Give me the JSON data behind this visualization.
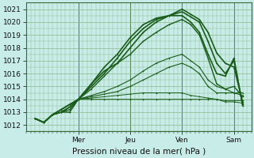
{
  "background_color": "#c8ece8",
  "grid_major_color": "#9abf9a",
  "grid_minor_color": "#a8d4a8",
  "line_color": "#1a5c1a",
  "ylabel_text": "Pression niveau de la mer( hPa )",
  "day_labels": [
    "Mer",
    "Jeu",
    "Ven",
    "Sam"
  ],
  "ylim": [
    1011.5,
    1021.5
  ],
  "yticks": [
    1012,
    1013,
    1014,
    1015,
    1016,
    1017,
    1018,
    1019,
    1020,
    1021
  ],
  "xlim": [
    -4,
    100
  ],
  "day_positions": [
    20,
    44,
    68,
    92
  ],
  "series": [
    [
      0,
      1012.5,
      4,
      1012.2,
      8,
      1012.8,
      12,
      1013.2,
      16,
      1013.6,
      20,
      1014.0,
      26,
      1015.2,
      32,
      1016.2,
      38,
      1016.8,
      44,
      1018.0,
      50,
      1019.2,
      56,
      1020.0,
      62,
      1020.5,
      68,
      1021.0,
      72,
      1020.6,
      76,
      1020.2,
      80,
      1019.2,
      84,
      1017.6,
      88,
      1016.8,
      92,
      1016.5,
      96,
      1013.8
    ],
    [
      0,
      1012.5,
      4,
      1012.2,
      8,
      1012.8,
      12,
      1013.2,
      16,
      1013.6,
      20,
      1014.0,
      26,
      1015.0,
      32,
      1016.0,
      38,
      1017.2,
      44,
      1018.5,
      50,
      1019.5,
      56,
      1020.2,
      62,
      1020.5,
      68,
      1020.8,
      72,
      1020.4,
      76,
      1020.0,
      80,
      1018.5,
      84,
      1016.8,
      88,
      1016.0,
      92,
      1017.0,
      96,
      1013.6
    ],
    [
      0,
      1012.5,
      4,
      1012.2,
      8,
      1012.8,
      12,
      1013.0,
      16,
      1013.4,
      20,
      1014.0,
      26,
      1015.2,
      32,
      1016.5,
      38,
      1017.5,
      44,
      1018.8,
      50,
      1019.8,
      56,
      1020.3,
      62,
      1020.5,
      68,
      1020.5,
      72,
      1020.0,
      76,
      1019.2,
      80,
      1017.5,
      84,
      1016.0,
      88,
      1015.8,
      92,
      1017.2,
      96,
      1013.5
    ],
    [
      0,
      1012.5,
      4,
      1012.2,
      8,
      1012.8,
      12,
      1013.0,
      16,
      1013.4,
      20,
      1014.0,
      26,
      1014.8,
      32,
      1015.8,
      38,
      1016.8,
      44,
      1017.5,
      50,
      1018.5,
      56,
      1019.2,
      62,
      1019.8,
      68,
      1020.2,
      72,
      1019.8,
      76,
      1019.0,
      80,
      1017.2,
      84,
      1015.2,
      88,
      1014.8,
      92,
      1015.0,
      96,
      1014.2
    ],
    [
      0,
      1012.5,
      4,
      1012.2,
      8,
      1012.8,
      12,
      1013.0,
      16,
      1013.2,
      20,
      1014.0,
      26,
      1014.3,
      32,
      1014.6,
      38,
      1015.0,
      44,
      1015.5,
      50,
      1016.2,
      56,
      1016.8,
      62,
      1017.2,
      68,
      1017.5,
      72,
      1017.0,
      76,
      1016.5,
      80,
      1015.5,
      84,
      1015.0,
      88,
      1014.8,
      92,
      1014.5,
      96,
      1014.5
    ],
    [
      0,
      1012.5,
      4,
      1012.2,
      8,
      1012.8,
      12,
      1013.0,
      16,
      1013.2,
      20,
      1014.0,
      26,
      1014.2,
      32,
      1014.4,
      38,
      1014.6,
      44,
      1015.0,
      50,
      1015.5,
      56,
      1016.0,
      62,
      1016.5,
      68,
      1016.8,
      72,
      1016.5,
      76,
      1016.0,
      80,
      1015.0,
      84,
      1014.5,
      88,
      1014.5,
      92,
      1014.5,
      96,
      1014.3
    ],
    [
      0,
      1012.5,
      4,
      1012.2,
      8,
      1012.8,
      12,
      1013.0,
      16,
      1013.0,
      20,
      1014.0,
      26,
      1014.1,
      32,
      1014.2,
      38,
      1014.3,
      44,
      1014.4,
      50,
      1014.5,
      56,
      1014.5,
      62,
      1014.5,
      68,
      1014.5,
      72,
      1014.3,
      76,
      1014.2,
      80,
      1014.1,
      84,
      1014.0,
      88,
      1013.9,
      92,
      1013.9,
      96,
      1013.9
    ],
    [
      0,
      1012.5,
      4,
      1012.2,
      8,
      1012.8,
      12,
      1013.0,
      16,
      1013.0,
      20,
      1014.0,
      26,
      1014.0,
      32,
      1014.0,
      38,
      1014.0,
      44,
      1014.0,
      50,
      1014.0,
      56,
      1014.0,
      62,
      1014.0,
      68,
      1014.0,
      72,
      1014.0,
      76,
      1014.0,
      80,
      1014.0,
      84,
      1014.0,
      88,
      1013.8,
      92,
      1013.8,
      96,
      1013.7
    ]
  ],
  "tick_fontsize": 6.5,
  "label_fontsize": 7.5
}
